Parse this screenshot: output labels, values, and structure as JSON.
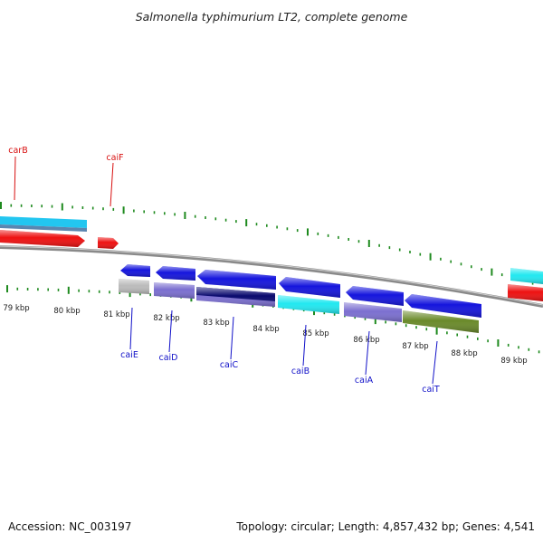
{
  "title": "Salmonella typhimurium LT2, complete genome",
  "footer": {
    "accession": "Accession: NC_003197",
    "summary": "Topology: circular; Length: 4,857,432 bp; Genes: 4,541"
  },
  "scale": {
    "labels": [
      "79 kbp",
      "80 kbp",
      "81 kbp",
      "82 kbp",
      "83 kbp",
      "84 kbp",
      "85 kbp",
      "86 kbp",
      "87 kbp",
      "88 kbp",
      "89 kbp"
    ]
  },
  "genes": [
    {
      "id": "carB",
      "label": "carB",
      "label_color": "red"
    },
    {
      "id": "caiF",
      "label": "caiF",
      "label_color": "red"
    },
    {
      "id": "caiE",
      "label": "caiE",
      "label_color": "blue"
    },
    {
      "id": "caiD",
      "label": "caiD",
      "label_color": "blue"
    },
    {
      "id": "caiC",
      "label": "caiC",
      "label_color": "blue"
    },
    {
      "id": "caiB",
      "label": "caiB",
      "label_color": "blue"
    },
    {
      "id": "caiA",
      "label": "caiA",
      "label_color": "blue"
    },
    {
      "id": "caiT",
      "label": "caiT",
      "label_color": "blue"
    }
  ],
  "colors": {
    "red": "#ee1111",
    "blue": "#1515dd",
    "cyan": "#22e8f0",
    "sky": "#22c6f0",
    "lavender": "#7b6fd0",
    "navy": "#0a0a6e",
    "olive": "#6a8a2a",
    "gray": "#bbbbbb",
    "tick": "#1e8a1e",
    "backbone": "#8a8a8a"
  }
}
